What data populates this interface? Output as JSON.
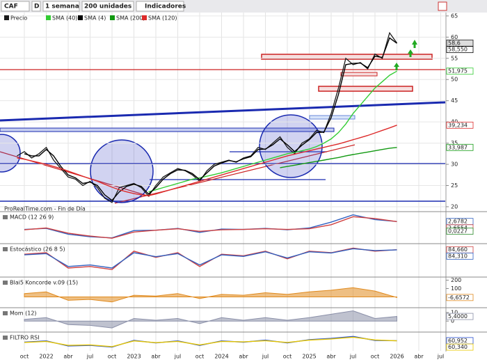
{
  "toolbar": {
    "symbol": "CAF",
    "mode": "D",
    "period": "1 semana",
    "units": "200 unidades",
    "indicators": "Indicadores"
  },
  "chart_data": [
    {
      "type": "line",
      "source": "ProRealTime.com - Fin de Día",
      "grid": true,
      "x": [
        "2021-09",
        "2021-10",
        "2021-11",
        "2021-12",
        "2022-01",
        "2022-02",
        "2022-03",
        "2022-04",
        "2022-05",
        "2022-06",
        "2022-07",
        "2022-08",
        "2022-09",
        "2022-10",
        "2022-11",
        "2022-12",
        "2023-01",
        "2023-02",
        "2023-03",
        "2023-04",
        "2023-05",
        "2023-06",
        "2023-07",
        "2023-08",
        "2023-09",
        "2023-10",
        "2023-11",
        "2023-12",
        "2024-01",
        "2024-02",
        "2024-03",
        "2024-04",
        "2024-05",
        "2024-06",
        "2024-07",
        "2024-08",
        "2024-09",
        "2024-10",
        "2024-11",
        "2024-12",
        "2025-01",
        "2025-02",
        "2025-03",
        "2025-04",
        "2025-05",
        "2025-06",
        "2025-07",
        "2025-08",
        "2025-09",
        "2025-10",
        "2025-11",
        "2025-12",
        "2026-01"
      ],
      "series": [
        {
          "name": "Precio",
          "color": "#1a1a1a",
          "last_label": "58,6",
          "values": [
            32,
            33,
            31.5,
            32.5,
            34,
            31,
            29,
            27,
            26.5,
            25,
            26,
            24.5,
            22,
            21,
            24.5,
            25,
            25.5,
            24.5,
            22.5,
            25,
            27,
            28,
            29,
            28.5,
            27.5,
            26,
            28.5,
            30,
            30.5,
            31,
            30.5,
            31.5,
            32,
            34,
            33.5,
            35,
            36.5,
            34,
            32.5,
            35,
            36,
            38,
            37.5,
            42,
            48,
            55,
            53.5,
            54,
            52.5,
            56,
            55,
            61,
            58.6
          ]
        },
        {
          "name": "SMA (40)",
          "color": "#33cc33",
          "last_label": "51,975",
          "values": [
            null,
            null,
            null,
            null,
            null,
            null,
            null,
            null,
            null,
            null,
            null,
            null,
            null,
            null,
            null,
            null,
            null,
            null,
            23.5,
            24,
            24.5,
            25,
            25.5,
            26,
            26.5,
            26.8,
            27.2,
            27.6,
            28,
            28.5,
            29,
            29.5,
            30,
            30.5,
            31,
            31.5,
            32,
            32.5,
            32.8,
            33.2,
            33.6,
            34.2,
            35,
            36,
            37.5,
            39.5,
            42,
            44,
            46,
            48,
            49.5,
            51,
            51.975
          ]
        },
        {
          "name": "SMA (4)",
          "color": "#000000",
          "last_label": "58,550",
          "values": [
            null,
            32.5,
            32,
            32,
            33.5,
            32,
            29.5,
            27.5,
            26.8,
            25.5,
            25.8,
            25,
            22.8,
            21.5,
            23.5,
            24.8,
            25.3,
            24.8,
            23,
            24.5,
            26.5,
            27.8,
            28.7,
            28.6,
            27.8,
            26.4,
            28,
            29.6,
            30.3,
            30.9,
            30.6,
            31.3,
            31.8,
            33.5,
            33.6,
            34.6,
            36,
            34.6,
            33,
            34.5,
            35.8,
            37.5,
            37.6,
            41,
            46.5,
            53.5,
            53.8,
            53.9,
            52.8,
            55.5,
            55.2,
            59.8,
            58.55
          ]
        },
        {
          "name": "SMA (200)",
          "color": "#119911",
          "last_label": "33,987",
          "values": [
            null,
            null,
            null,
            null,
            null,
            null,
            null,
            null,
            null,
            null,
            null,
            null,
            null,
            null,
            null,
            null,
            null,
            null,
            null,
            null,
            null,
            null,
            null,
            null,
            null,
            null,
            null,
            null,
            null,
            null,
            null,
            null,
            null,
            null,
            null,
            null,
            29.2,
            29.5,
            29.8,
            30.1,
            30.4,
            30.7,
            31,
            31.3,
            31.6,
            32,
            32.3,
            32.6,
            32.9,
            33.2,
            33.5,
            33.8,
            33.987
          ]
        },
        {
          "name": "SMA (120)",
          "color": "#dd2a2a",
          "last_label": "39,234",
          "values": [
            31.5,
            31.2,
            30.8,
            30.4,
            30,
            29.5,
            29,
            28.4,
            27.8,
            27.2,
            26.6,
            26,
            25.3,
            24.6,
            24,
            23.5,
            23.1,
            22.8,
            22.6,
            23,
            23.5,
            24,
            24.5,
            25,
            25.5,
            26,
            26.5,
            27,
            27.5,
            28,
            28.5,
            29,
            29.5,
            30,
            30.5,
            31,
            31.5,
            32,
            32.4,
            32.8,
            33.2,
            33.6,
            34,
            34.4,
            34.8,
            35.3,
            35.8,
            36.3,
            36.8,
            37.4,
            38,
            38.6,
            39.234
          ]
        }
      ],
      "ylim": [
        19.5,
        65.8
      ],
      "yticks": [
        65,
        60,
        55,
        50,
        45,
        40,
        35,
        30,
        25,
        20
      ],
      "xticks": [
        {
          "value": "2021-10",
          "label": "oct"
        },
        {
          "value": "2022-01",
          "label": "2022"
        },
        {
          "value": "2022-04",
          "label": "abr"
        },
        {
          "value": "2022-07",
          "label": "jul"
        },
        {
          "value": "2022-10",
          "label": "oct"
        },
        {
          "value": "2023-01",
          "label": "2023"
        },
        {
          "value": "2023-04",
          "label": "abr"
        },
        {
          "value": "2023-07",
          "label": "jul"
        },
        {
          "value": "2023-10",
          "label": "oct"
        },
        {
          "value": "2024-01",
          "label": "2024"
        },
        {
          "value": "2024-04",
          "label": "abr"
        },
        {
          "value": "2024-07",
          "label": "jul"
        },
        {
          "value": "2024-10",
          "label": "oct"
        },
        {
          "value": "2025-01",
          "label": "2025"
        },
        {
          "value": "2025-04",
          "label": "abr"
        },
        {
          "value": "2025-07",
          "label": "jul"
        },
        {
          "value": "2025-10",
          "label": "oct"
        },
        {
          "value": "2026-01",
          "label": "2026"
        },
        {
          "value": "2026-04",
          "label": "abr"
        },
        {
          "value": "2026-07",
          "label": "jul"
        }
      ]
    },
    {
      "type": "line",
      "title": "MACD (12 26 9)",
      "ylim": [
        -3,
        5
      ],
      "x": [
        "2021-10",
        "2022-01",
        "2022-04",
        "2022-07",
        "2022-10",
        "2023-01",
        "2023-04",
        "2023-07",
        "2023-10",
        "2024-01",
        "2024-04",
        "2024-07",
        "2024-10",
        "2025-01",
        "2025-04",
        "2025-07",
        "2025-10",
        "2026-01"
      ],
      "series": [
        {
          "color": "#3060c0",
          "last_label": "2,6782",
          "values": [
            0.5,
            0.8,
            -0.8,
            -1.5,
            -1.8,
            0.2,
            0.3,
            0.8,
            -0.3,
            0.6,
            0.5,
            0.8,
            0.4,
            0.9,
            2.5,
            4.5,
            3.2,
            2.6782
          ]
        },
        {
          "color": "#d04040",
          "last_label": "2,6554",
          "values": [
            0.4,
            0.9,
            -0.5,
            -1.3,
            -1.9,
            -0.2,
            0.3,
            0.7,
            0,
            0.4,
            0.5,
            0.7,
            0.5,
            0.7,
            1.8,
            4,
            3.5,
            2.6554
          ]
        }
      ],
      "labels": [
        {
          "value": 0.0227,
          "label": "0,0227"
        }
      ]
    },
    {
      "type": "line",
      "title": "Estocástico (26 8 5)",
      "ylim": [
        0,
        100
      ],
      "x": [
        "2021-10",
        "2022-01",
        "2022-04",
        "2022-07",
        "2022-10",
        "2023-01",
        "2023-04",
        "2023-07",
        "2023-10",
        "2024-01",
        "2024-04",
        "2024-07",
        "2024-10",
        "2025-01",
        "2025-04",
        "2025-07",
        "2025-10",
        "2026-01"
      ],
      "series": [
        {
          "color": "#d04040",
          "last_label": "84,660",
          "values": [
            70,
            75,
            25,
            30,
            20,
            80,
            60,
            75,
            30,
            70,
            65,
            80,
            55,
            80,
            75,
            90,
            80,
            84.66
          ]
        },
        {
          "color": "#3060c0",
          "last_label": "84,310",
          "values": [
            68,
            72,
            30,
            35,
            25,
            75,
            62,
            72,
            35,
            68,
            63,
            78,
            58,
            78,
            74,
            88,
            82,
            84.31
          ]
        }
      ]
    },
    {
      "type": "area",
      "title": "Blai5 Koncorde v.09 (15)",
      "ylim": [
        -120,
        220
      ],
      "yticks": [
        200,
        100,
        0
      ],
      "x": [
        "2021-10",
        "2022-01",
        "2022-04",
        "2022-07",
        "2022-10",
        "2023-01",
        "2023-04",
        "2023-07",
        "2023-10",
        "2024-01",
        "2024-04",
        "2024-07",
        "2024-10",
        "2025-01",
        "2025-04",
        "2025-07",
        "2025-10",
        "2026-01"
      ],
      "series": [
        {
          "color": "#e08a1e",
          "last_label": "-6,6572",
          "values": [
            40,
            60,
            -40,
            -30,
            -60,
            20,
            10,
            40,
            -20,
            30,
            20,
            50,
            30,
            60,
            80,
            110,
            70,
            -6.6572
          ]
        }
      ]
    },
    {
      "type": "area",
      "title": "Mom (12)",
      "ylim": [
        -12,
        14
      ],
      "yticks": [
        10,
        0
      ],
      "x": [
        "2021-10",
        "2022-01",
        "2022-04",
        "2022-07",
        "2022-10",
        "2023-01",
        "2023-04",
        "2023-07",
        "2023-10",
        "2024-01",
        "2024-04",
        "2024-07",
        "2024-10",
        "2025-01",
        "2025-04",
        "2025-07",
        "2025-10",
        "2026-01"
      ],
      "series": [
        {
          "color": "#8a8fa8",
          "last_label": "5,4000",
          "values": [
            2,
            4,
            -4,
            -5,
            -8,
            3,
            1,
            3,
            -3,
            4,
            1,
            4,
            1,
            4,
            8,
            12,
            3,
            5.4
          ]
        }
      ]
    },
    {
      "type": "line",
      "title": "FILTRO RSI",
      "ylim": [
        20,
        90
      ],
      "x": [
        "2021-10",
        "2022-01",
        "2022-04",
        "2022-07",
        "2022-10",
        "2023-01",
        "2023-04",
        "2023-07",
        "2023-10",
        "2024-01",
        "2024-04",
        "2024-07",
        "2024-10",
        "2025-01",
        "2025-04",
        "2025-07",
        "2025-10",
        "2026-01"
      ],
      "series": [
        {
          "color": "#2850d0",
          "last_label": "60,952",
          "values": [
            55,
            60,
            40,
            42,
            35,
            62,
            52,
            60,
            42,
            60,
            55,
            63,
            52,
            65,
            70,
            78,
            62,
            60.952
          ]
        },
        {
          "color": "#e8c800",
          "last_label": "60,340",
          "values": [
            54,
            58,
            42,
            44,
            37,
            60,
            53,
            58,
            44,
            58,
            56,
            61,
            54,
            63,
            68,
            75,
            64,
            60.34
          ]
        }
      ]
    }
  ]
}
